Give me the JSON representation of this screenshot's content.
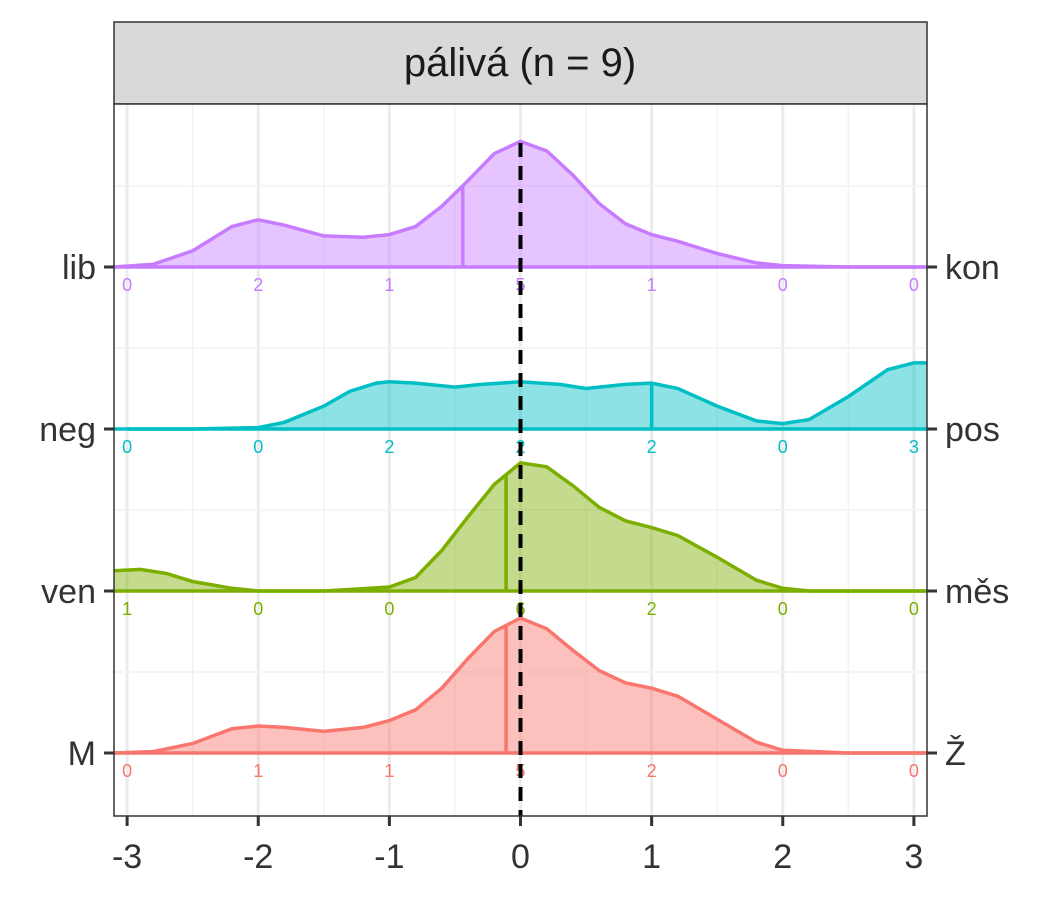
{
  "chart_data": {
    "type": "ridgeline-density",
    "title": "pálivá (n = 9)",
    "xlim": [
      -3.1,
      3.1
    ],
    "x_ticks": [
      -3,
      -2,
      -1,
      0,
      1,
      2,
      3
    ],
    "x_tick_labels": [
      "-3",
      "-2",
      "-1",
      "0",
      "1",
      "2",
      "3"
    ],
    "reference_line_x": 0,
    "grid": true,
    "series": [
      {
        "left_label": "lib",
        "right_label": "kon",
        "color": "#C77CFF",
        "mean": -0.44,
        "counts": [
          0,
          2,
          1,
          5,
          1,
          0,
          0
        ],
        "density": [
          [
            -3.1,
            0.0
          ],
          [
            -2.8,
            0.02
          ],
          [
            -2.5,
            0.12
          ],
          [
            -2.2,
            0.3
          ],
          [
            -2.0,
            0.35
          ],
          [
            -1.8,
            0.31
          ],
          [
            -1.5,
            0.23
          ],
          [
            -1.2,
            0.22
          ],
          [
            -1.0,
            0.24
          ],
          [
            -0.8,
            0.3
          ],
          [
            -0.6,
            0.45
          ],
          [
            -0.4,
            0.64
          ],
          [
            -0.2,
            0.84
          ],
          [
            0.0,
            0.93
          ],
          [
            0.2,
            0.86
          ],
          [
            0.4,
            0.68
          ],
          [
            0.6,
            0.47
          ],
          [
            0.8,
            0.32
          ],
          [
            1.0,
            0.24
          ],
          [
            1.2,
            0.19
          ],
          [
            1.5,
            0.1
          ],
          [
            1.8,
            0.03
          ],
          [
            2.0,
            0.01
          ],
          [
            2.5,
            0.0
          ],
          [
            3.1,
            0.0
          ]
        ]
      },
      {
        "left_label": "neg",
        "right_label": "pos",
        "color": "#00BFC4",
        "mean": 1.0,
        "counts": [
          0,
          0,
          2,
          2,
          2,
          0,
          3
        ],
        "density": [
          [
            -3.0,
            0.0
          ],
          [
            -2.5,
            0.0
          ],
          [
            -2.0,
            0.01
          ],
          [
            -1.8,
            0.05
          ],
          [
            -1.5,
            0.17
          ],
          [
            -1.3,
            0.28
          ],
          [
            -1.1,
            0.34
          ],
          [
            -1.0,
            0.35
          ],
          [
            -0.8,
            0.34
          ],
          [
            -0.5,
            0.31
          ],
          [
            -0.3,
            0.33
          ],
          [
            0.0,
            0.35
          ],
          [
            0.3,
            0.33
          ],
          [
            0.5,
            0.3
          ],
          [
            0.8,
            0.33
          ],
          [
            1.0,
            0.34
          ],
          [
            1.2,
            0.3
          ],
          [
            1.5,
            0.17
          ],
          [
            1.8,
            0.06
          ],
          [
            2.0,
            0.04
          ],
          [
            2.2,
            0.07
          ],
          [
            2.5,
            0.24
          ],
          [
            2.8,
            0.44
          ],
          [
            3.0,
            0.49
          ],
          [
            3.1,
            0.49
          ]
        ]
      },
      {
        "left_label": "ven",
        "right_label": "měs",
        "color": "#7CAE00",
        "mean": -0.11,
        "counts": [
          1,
          0,
          0,
          6,
          2,
          0,
          0
        ],
        "density": [
          [
            -3.1,
            0.15
          ],
          [
            -2.9,
            0.16
          ],
          [
            -2.7,
            0.13
          ],
          [
            -2.5,
            0.07
          ],
          [
            -2.2,
            0.02
          ],
          [
            -2.0,
            0.0
          ],
          [
            -1.5,
            0.0
          ],
          [
            -1.0,
            0.03
          ],
          [
            -0.8,
            0.1
          ],
          [
            -0.6,
            0.3
          ],
          [
            -0.4,
            0.55
          ],
          [
            -0.2,
            0.79
          ],
          [
            0.0,
            0.95
          ],
          [
            0.2,
            0.92
          ],
          [
            0.4,
            0.78
          ],
          [
            0.6,
            0.62
          ],
          [
            0.8,
            0.52
          ],
          [
            1.0,
            0.47
          ],
          [
            1.2,
            0.41
          ],
          [
            1.5,
            0.25
          ],
          [
            1.8,
            0.08
          ],
          [
            2.0,
            0.02
          ],
          [
            2.2,
            0.0
          ],
          [
            2.5,
            0.0
          ],
          [
            3.1,
            0.0
          ]
        ]
      },
      {
        "left_label": "M",
        "right_label": "Ž",
        "color": "#F8766D",
        "mean": -0.11,
        "counts": [
          0,
          1,
          1,
          5,
          2,
          0,
          0
        ],
        "density": [
          [
            -3.1,
            0.0
          ],
          [
            -2.8,
            0.01
          ],
          [
            -2.5,
            0.07
          ],
          [
            -2.2,
            0.18
          ],
          [
            -2.0,
            0.2
          ],
          [
            -1.8,
            0.19
          ],
          [
            -1.5,
            0.16
          ],
          [
            -1.2,
            0.19
          ],
          [
            -1.0,
            0.24
          ],
          [
            -0.8,
            0.32
          ],
          [
            -0.6,
            0.48
          ],
          [
            -0.4,
            0.7
          ],
          [
            -0.2,
            0.9
          ],
          [
            0.0,
            1.0
          ],
          [
            0.2,
            0.92
          ],
          [
            0.4,
            0.76
          ],
          [
            0.6,
            0.61
          ],
          [
            0.8,
            0.52
          ],
          [
            1.0,
            0.48
          ],
          [
            1.2,
            0.42
          ],
          [
            1.5,
            0.25
          ],
          [
            1.8,
            0.08
          ],
          [
            2.0,
            0.02
          ],
          [
            2.5,
            0.0
          ],
          [
            3.1,
            0.0
          ]
        ]
      }
    ]
  }
}
